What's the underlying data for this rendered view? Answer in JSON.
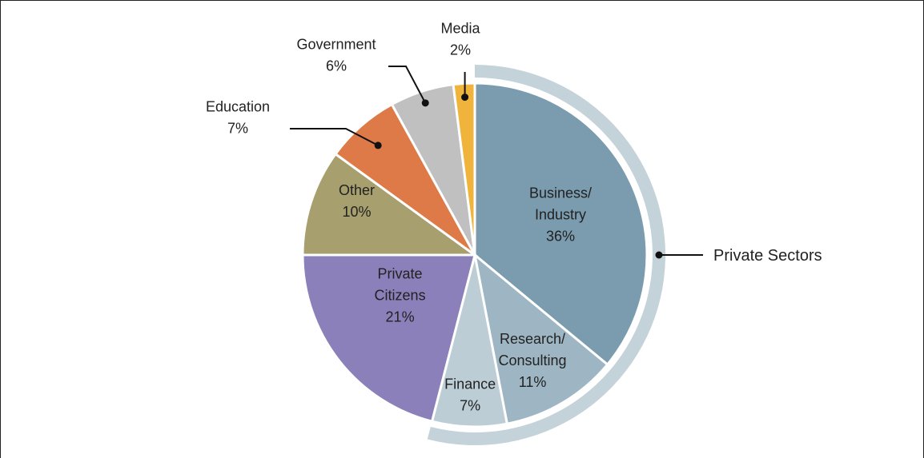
{
  "chart_data": {
    "type": "pie",
    "title": "",
    "slices": [
      {
        "label": "Business/ Industry",
        "lines": [
          "Business/",
          "Industry",
          "36%"
        ],
        "value": 36,
        "color": "#7a9cae"
      },
      {
        "label": "Research/ Consulting",
        "lines": [
          "Research/",
          "Consulting",
          "11%"
        ],
        "value": 11,
        "color": "#9eb6c3"
      },
      {
        "label": "Finance",
        "lines": [
          "Finance",
          "7%"
        ],
        "value": 7,
        "color": "#bccdd6"
      },
      {
        "label": "Private Citizens",
        "lines": [
          "Private",
          "Citizens",
          "21%"
        ],
        "value": 21,
        "color": "#8b80b9"
      },
      {
        "label": "Other",
        "lines": [
          "Other",
          "10%"
        ],
        "value": 10,
        "color": "#a89f6e"
      },
      {
        "label": "Education",
        "lines": [
          "Education",
          "7%"
        ],
        "value": 7,
        "color": "#dd7a47"
      },
      {
        "label": "Government",
        "lines": [
          "Government",
          "6%"
        ],
        "value": 6,
        "color": "#c0c0c0"
      },
      {
        "label": "Media",
        "lines": [
          "Media",
          "2%"
        ],
        "value": 2,
        "color": "#f0b43c"
      }
    ],
    "group": {
      "label": "Private Sectors",
      "members": [
        "Business/ Industry",
        "Research/ Consulting",
        "Finance"
      ],
      "color": "#c4d2da"
    }
  }
}
